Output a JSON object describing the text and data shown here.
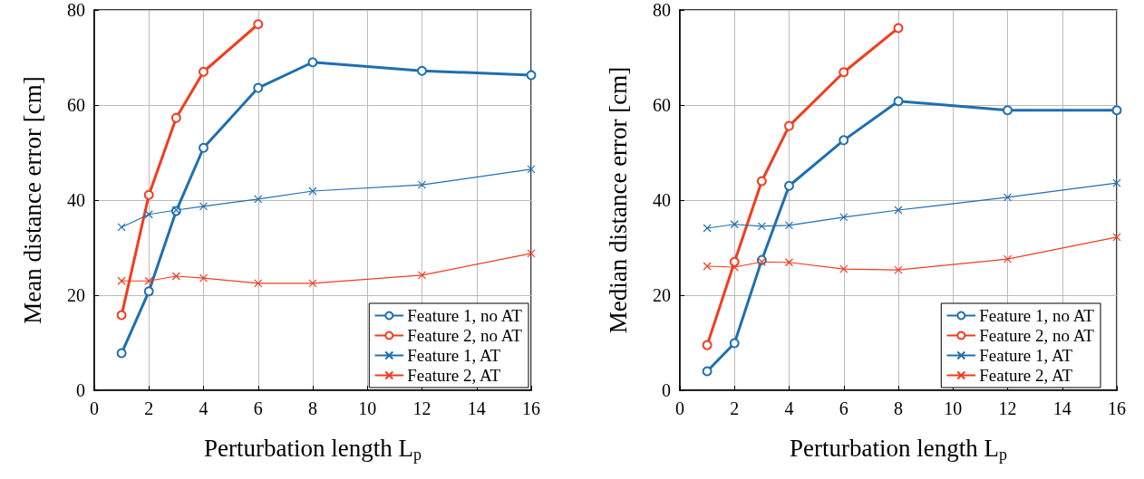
{
  "chart_data": [
    {
      "type": "line",
      "xlabel": "Perturbation length L$_{p}$",
      "ylabel": "Mean distance error [cm]",
      "x": [
        1,
        2,
        3,
        4,
        6,
        8,
        12,
        16
      ],
      "xlim": [
        0,
        16
      ],
      "xticks": [
        0,
        2,
        4,
        6,
        8,
        10,
        12,
        14,
        16
      ],
      "ylim": [
        0,
        80
      ],
      "yticks": [
        0,
        20,
        40,
        60,
        80
      ],
      "grid": true,
      "legend": "bottom right",
      "line_style": "solid",
      "series": [
        {
          "name": "Feature 1, no AT",
          "color": "#1f6fb0",
          "marker": "circle",
          "values": [
            7.8,
            20.8,
            37.7,
            51,
            63.6,
            69,
            67.2,
            66.3
          ]
        },
        {
          "name": "Feature 2, no AT",
          "color": "#f23c1e",
          "marker": "circle",
          "values": [
            15.8,
            41.1,
            57.3,
            67,
            77,
            null,
            null,
            null
          ]
        },
        {
          "name": "Feature 1, AT",
          "color": "#1f6fb0",
          "marker": "cross",
          "values": [
            34.3,
            37,
            37.9,
            38.7,
            40.2,
            41.9,
            43.2,
            46.5
          ]
        },
        {
          "name": "Feature 2, AT",
          "color": "#f23c1e",
          "marker": "cross",
          "values": [
            23,
            23,
            24,
            23.6,
            22.5,
            22.5,
            24.2,
            28.8
          ]
        }
      ]
    },
    {
      "type": "line",
      "xlabel": "Perturbation length L$_{p}$",
      "ylabel": "Median distance error [cm]",
      "x": [
        1,
        2,
        3,
        4,
        6,
        8,
        12,
        16
      ],
      "xlim": [
        0,
        16
      ],
      "xticks": [
        0,
        2,
        4,
        6,
        8,
        10,
        12,
        14,
        16
      ],
      "ylim": [
        0,
        80
      ],
      "yticks": [
        0,
        20,
        40,
        60,
        80
      ],
      "grid": true,
      "legend": "bottom right",
      "line_style": "solid",
      "series": [
        {
          "name": "Feature 1, no AT",
          "color": "#1f6fb0",
          "marker": "circle",
          "values": [
            4,
            9.9,
            27.4,
            43,
            52.6,
            60.8,
            58.9,
            58.9
          ]
        },
        {
          "name": "Feature 2, no AT",
          "color": "#f23c1e",
          "marker": "circle",
          "values": [
            9.5,
            27,
            44,
            55.6,
            66.9,
            76.2,
            null,
            null
          ]
        },
        {
          "name": "Feature 1, AT",
          "color": "#1f6fb0",
          "marker": "cross",
          "values": [
            34.1,
            34.9,
            34.5,
            34.7,
            36.4,
            37.9,
            40.6,
            43.6
          ]
        },
        {
          "name": "Feature 2, AT",
          "color": "#f23c1e",
          "marker": "cross",
          "values": [
            26.1,
            25.9,
            27,
            26.9,
            25.5,
            25.3,
            27.6,
            32.2
          ]
        }
      ]
    }
  ]
}
